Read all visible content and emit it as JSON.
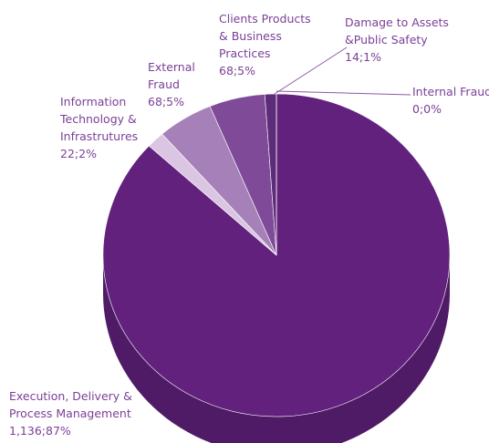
{
  "chart_data": {
    "type": "pie",
    "categories": [
      "Execution, Delivery & Process Management",
      "Information Technology & Infrastrutures",
      "External Fraud",
      "Clients Products & Business Practices",
      "Damage to Assets &Public Safety",
      "Internal Fraud"
    ],
    "values": [
      1136,
      22,
      68,
      68,
      14,
      0
    ],
    "value_labels": [
      "1,136;87%",
      "22;2%",
      "68;5%",
      "68;5%",
      "14;1%",
      "0;0%"
    ],
    "colors": [
      "#62217d",
      "#dac6e2",
      "#a681b9",
      "#7f4b99",
      "#5e2a7a",
      "#8a5aa3"
    ]
  }
}
